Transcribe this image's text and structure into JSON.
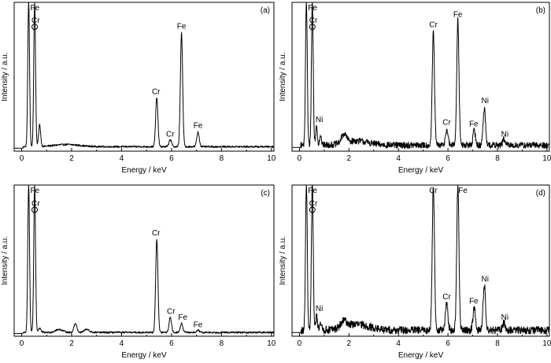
{
  "chart_data": [
    {
      "type": "line",
      "panel_label": "(a)",
      "xlabel": "Energy / keV",
      "ylabel": "Intensity / a.u.",
      "xlim": [
        -0.3,
        10.1
      ],
      "ylim": [
        0,
        100
      ],
      "xticks": [
        0,
        2,
        4,
        6,
        8,
        10
      ],
      "tick_labels": [
        "0",
        "2",
        "4",
        "6",
        "8",
        "10"
      ],
      "baseline": 2,
      "noise": 0.6,
      "peaks": [
        {
          "x": 0.28,
          "h": 100,
          "w": 0.035
        },
        {
          "x": 0.52,
          "h": 100,
          "w": 0.035
        },
        {
          "x": 0.72,
          "h": 15,
          "w": 0.04
        },
        {
          "x": 1.8,
          "h": 1.5,
          "w": 0.5
        },
        {
          "x": 5.41,
          "h": 34,
          "w": 0.045
        },
        {
          "x": 5.95,
          "h": 5,
          "w": 0.05
        },
        {
          "x": 6.4,
          "h": 78,
          "w": 0.045
        },
        {
          "x": 7.06,
          "h": 10,
          "w": 0.05
        }
      ],
      "labels": [
        {
          "text": "Fe",
          "x": 0.53,
          "y": 98
        },
        {
          "text": "Cr",
          "x": 0.56,
          "y": 87,
          "circle": true
        },
        {
          "text": "Fe",
          "x": 6.4,
          "y": 83
        },
        {
          "text": "Cr",
          "x": 5.38,
          "y": 38
        },
        {
          "text": "Cr",
          "x": 5.95,
          "y": 9
        },
        {
          "text": "Fe",
          "x": 7.06,
          "y": 15
        }
      ]
    },
    {
      "type": "line",
      "panel_label": "(b)",
      "xlabel": "Energy / keV",
      "ylabel": "Intensity / a.u.",
      "xlim": [
        -0.3,
        10.1
      ],
      "ylim": [
        0,
        100
      ],
      "xticks": [
        0,
        2,
        4,
        6,
        8,
        10
      ],
      "tick_labels": [
        "0",
        "2",
        "4",
        "6",
        "8",
        "10"
      ],
      "baseline": 3,
      "noise": 2.2,
      "peaks": [
        {
          "x": 0.28,
          "h": 100,
          "w": 0.035
        },
        {
          "x": 0.52,
          "h": 100,
          "w": 0.035
        },
        {
          "x": 0.69,
          "h": 13,
          "w": 0.035
        },
        {
          "x": 0.85,
          "h": 7,
          "w": 0.035
        },
        {
          "x": 1.8,
          "h": 6,
          "w": 0.1
        },
        {
          "x": 2.3,
          "h": 3,
          "w": 0.5
        },
        {
          "x": 5.41,
          "h": 78,
          "w": 0.045
        },
        {
          "x": 5.95,
          "h": 11,
          "w": 0.05
        },
        {
          "x": 6.4,
          "h": 86,
          "w": 0.045
        },
        {
          "x": 7.06,
          "h": 10,
          "w": 0.05
        },
        {
          "x": 7.47,
          "h": 25,
          "w": 0.05
        },
        {
          "x": 8.26,
          "h": 4,
          "w": 0.05
        }
      ],
      "labels": [
        {
          "text": "Fe",
          "x": 0.53,
          "y": 98
        },
        {
          "text": "Cr",
          "x": 0.56,
          "y": 87,
          "circle": true
        },
        {
          "text": "Cr",
          "x": 5.41,
          "y": 84
        },
        {
          "text": "Fe",
          "x": 6.4,
          "y": 91
        },
        {
          "text": "Ni",
          "x": 0.8,
          "y": 19
        },
        {
          "text": "Cr",
          "x": 5.95,
          "y": 17
        },
        {
          "text": "Fe",
          "x": 7.04,
          "y": 16
        },
        {
          "text": "Ni",
          "x": 7.5,
          "y": 32
        },
        {
          "text": "Ni",
          "x": 8.3,
          "y": 9
        }
      ]
    },
    {
      "type": "line",
      "panel_label": "(c)",
      "xlabel": "Energy / keV",
      "ylabel": "Intensity / a.u.",
      "xlim": [
        -0.3,
        10.1
      ],
      "ylim": [
        0,
        100
      ],
      "xticks": [
        0,
        2,
        4,
        6,
        8,
        10
      ],
      "tick_labels": [
        "0",
        "2",
        "4",
        "6",
        "8",
        "10"
      ],
      "baseline": 1.5,
      "noise": 0.6,
      "peaks": [
        {
          "x": 0.28,
          "h": 100,
          "w": 0.035
        },
        {
          "x": 0.52,
          "h": 100,
          "w": 0.035
        },
        {
          "x": 0.72,
          "h": 3,
          "w": 0.05
        },
        {
          "x": 1.5,
          "h": 2,
          "w": 0.15
        },
        {
          "x": 2.15,
          "h": 6,
          "w": 0.06
        },
        {
          "x": 2.6,
          "h": 2,
          "w": 0.1
        },
        {
          "x": 5.41,
          "h": 63,
          "w": 0.045
        },
        {
          "x": 5.95,
          "h": 10,
          "w": 0.05
        },
        {
          "x": 6.4,
          "h": 6,
          "w": 0.05
        },
        {
          "x": 7.06,
          "h": 1.5,
          "w": 0.05
        }
      ],
      "labels": [
        {
          "text": "Fe",
          "x": 0.53,
          "y": 98
        },
        {
          "text": "Cr",
          "x": 0.56,
          "y": 87,
          "circle": true
        },
        {
          "text": "Cr",
          "x": 5.38,
          "y": 67
        },
        {
          "text": "Cr",
          "x": 5.98,
          "y": 14
        },
        {
          "text": "Fe",
          "x": 6.45,
          "y": 10
        },
        {
          "text": "Fe",
          "x": 7.06,
          "y": 5
        }
      ]
    },
    {
      "type": "line",
      "panel_label": "(d)",
      "xlabel": "Energy / keV",
      "ylabel": "Intensity / a.u.",
      "xlim": [
        -0.3,
        10.1
      ],
      "ylim": [
        0,
        100
      ],
      "xticks": [
        0,
        2,
        4,
        6,
        8,
        10
      ],
      "tick_labels": [
        "0",
        "2",
        "4",
        "6",
        "8",
        "10"
      ],
      "baseline": 3,
      "noise": 2.6,
      "peaks": [
        {
          "x": 0.28,
          "h": 100,
          "w": 0.035
        },
        {
          "x": 0.52,
          "h": 100,
          "w": 0.035
        },
        {
          "x": 0.69,
          "h": 10,
          "w": 0.035
        },
        {
          "x": 0.85,
          "h": 6,
          "w": 0.035
        },
        {
          "x": 1.8,
          "h": 4,
          "w": 0.12
        },
        {
          "x": 2.3,
          "h": 4,
          "w": 0.5
        },
        {
          "x": 5.41,
          "h": 98,
          "w": 0.045
        },
        {
          "x": 5.95,
          "h": 18,
          "w": 0.05
        },
        {
          "x": 6.4,
          "h": 98,
          "w": 0.045
        },
        {
          "x": 7.06,
          "h": 15,
          "w": 0.05
        },
        {
          "x": 7.47,
          "h": 30,
          "w": 0.05
        },
        {
          "x": 8.26,
          "h": 5,
          "w": 0.05
        }
      ],
      "labels": [
        {
          "text": "Fe",
          "x": 0.53,
          "y": 98
        },
        {
          "text": "Cr",
          "x": 0.56,
          "y": 87,
          "circle": true
        },
        {
          "text": "Cr",
          "x": 5.41,
          "y": 100
        },
        {
          "text": "Fe",
          "x": 6.6,
          "y": 98
        },
        {
          "text": "Ni",
          "x": 0.8,
          "y": 16
        },
        {
          "text": "Cr",
          "x": 5.95,
          "y": 24
        },
        {
          "text": "Fe",
          "x": 7.04,
          "y": 21
        },
        {
          "text": "Ni",
          "x": 7.5,
          "y": 36
        },
        {
          "text": "Ni",
          "x": 8.3,
          "y": 10
        }
      ]
    }
  ]
}
